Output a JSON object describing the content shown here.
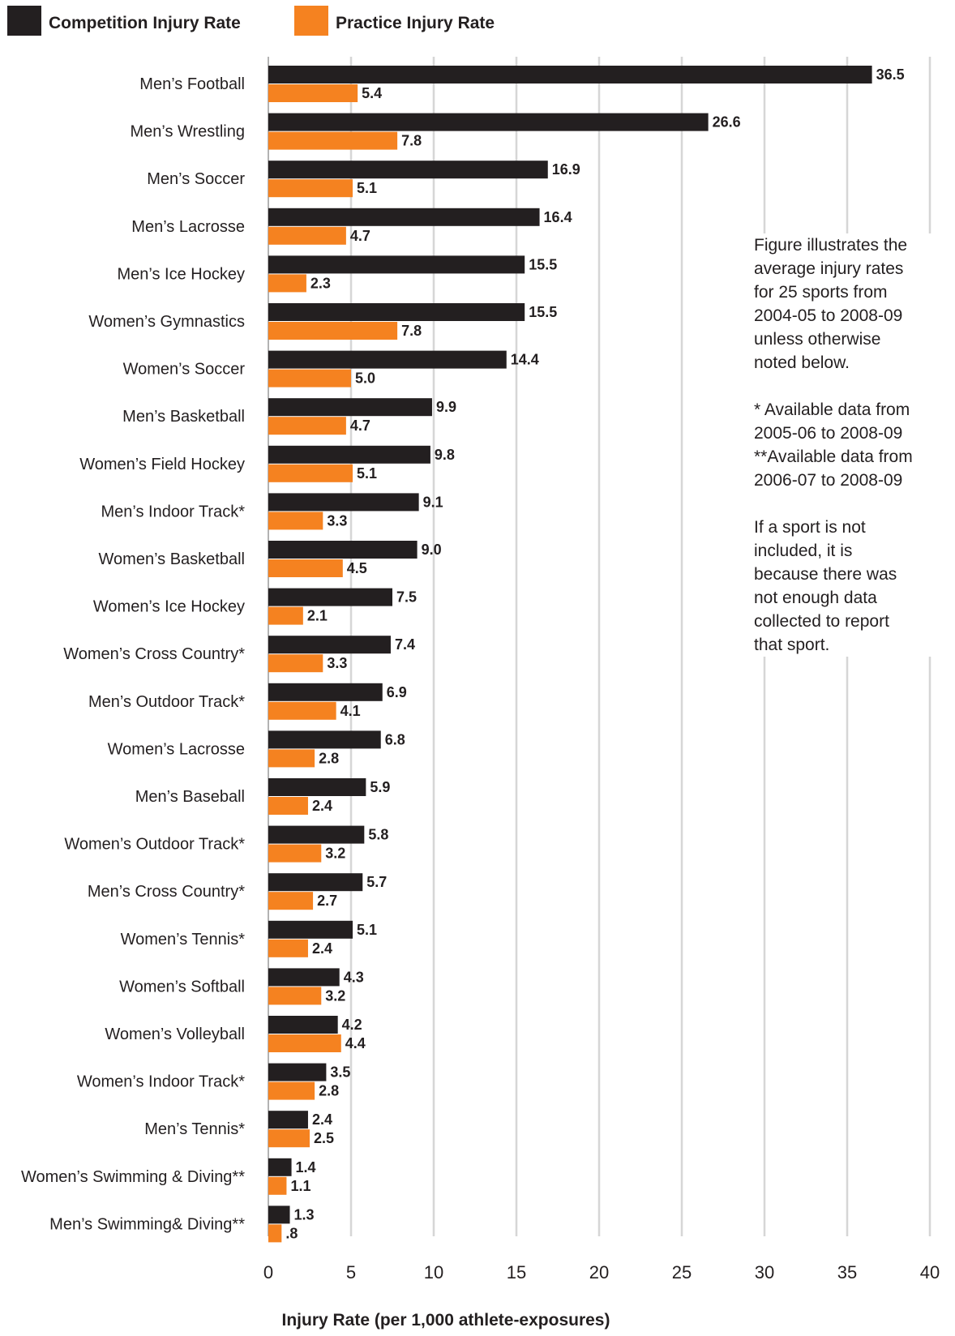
{
  "chart_data": {
    "type": "bar",
    "orientation": "horizontal",
    "title": "",
    "xlabel": "Injury Rate (per 1,000 athlete-exposures)",
    "ylabel": "",
    "xlim": [
      0,
      40
    ],
    "x_ticks": [
      "0",
      "5",
      "10",
      "15",
      "20",
      "25",
      "30",
      "35",
      "40"
    ],
    "grid": "vertical",
    "legend": "top-left",
    "categories": [
      "Men’s Football",
      "Men’s Wrestling",
      "Men’s Soccer",
      "Men’s Lacrosse",
      "Men’s Ice Hockey",
      "Women’s Gymnastics",
      "Women’s Soccer",
      "Men’s Basketball",
      "Women’s Field Hockey",
      "Men’s Indoor Track*",
      "Women’s Basketball",
      "Women’s Ice Hockey",
      "Women’s Cross Country*",
      "Men’s Outdoor Track*",
      "Women’s Lacrosse",
      "Men’s Baseball",
      "Women’s Outdoor Track*",
      "Men’s Cross Country*",
      "Women’s Tennis*",
      "Women’s Softball",
      "Women’s Volleyball",
      "Women’s Indoor Track*",
      "Men’s Tennis*",
      "Women’s Swimming & Diving**",
      "Men’s Swimming& Diving**"
    ],
    "series": [
      {
        "name": "Competition Injury Rate",
        "color": "#231f20",
        "values": [
          36.5,
          26.6,
          16.9,
          16.4,
          15.5,
          15.5,
          14.4,
          9.9,
          9.8,
          9.1,
          9.0,
          7.5,
          7.4,
          6.9,
          6.8,
          5.9,
          5.8,
          5.7,
          5.1,
          4.3,
          4.2,
          3.5,
          2.4,
          1.4,
          1.3
        ],
        "labels": [
          "36.5",
          "26.6",
          "16.9",
          "16.4",
          "15.5",
          "15.5",
          "14.4",
          "9.9",
          "9.8",
          "9.1",
          "9.0",
          "7.5",
          "7.4",
          "6.9",
          "6.8",
          "5.9",
          "5.8",
          "5.7",
          "5.1",
          "4.3",
          "4.2",
          "3.5",
          "2.4",
          "1.4",
          "1.3"
        ]
      },
      {
        "name": "Practice Injury Rate",
        "color": "#f58220",
        "values": [
          5.4,
          7.8,
          5.1,
          4.7,
          2.3,
          7.8,
          5.0,
          4.7,
          5.1,
          3.3,
          4.5,
          2.1,
          3.3,
          4.1,
          2.8,
          2.4,
          3.2,
          2.7,
          2.4,
          3.2,
          4.4,
          2.8,
          2.5,
          1.1,
          0.8
        ],
        "labels": [
          "5.4",
          "7.8",
          "5.1",
          "4.7",
          "2.3",
          "7.8",
          "5.0",
          "4.7",
          "5.1",
          "3.3",
          "4.5",
          "2.1",
          "3.3",
          "4.1",
          "2.8",
          "2.4",
          "3.2",
          "2.7",
          "2.4",
          "3.2",
          "4.4",
          "2.8",
          "2.5",
          "1.1",
          ".8"
        ]
      }
    ]
  },
  "note": {
    "lines_1": [
      "Figure illustrates the",
      "average injury rates",
      "for 25 sports from",
      "2004-05 to 2008-09",
      "unless otherwise",
      "noted below."
    ],
    "lines_2": [
      "* Available data from",
      "2005-06 to 2008-09",
      "**Available data from",
      "2006-07 to 2008-09"
    ],
    "lines_3": [
      "If a sport is not",
      "included, it is",
      "because there was",
      "not enough data",
      "collected to report",
      "that sport."
    ]
  }
}
